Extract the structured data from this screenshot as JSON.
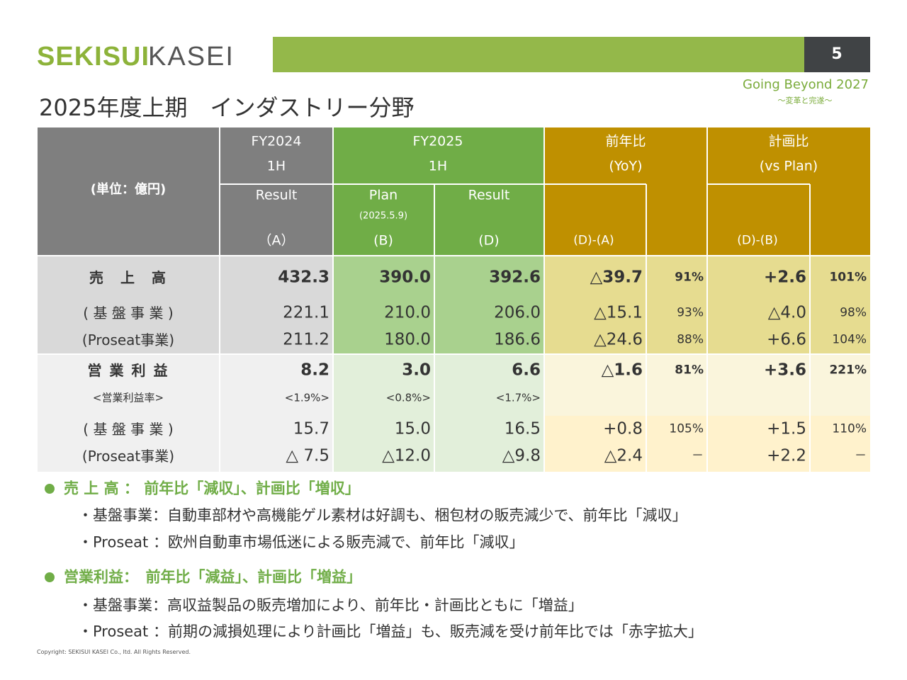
{
  "header": {
    "logo_bold": "SEKISUI",
    "logo_light": "KASEI",
    "page_number": "5",
    "tagline": "Going Beyond 2027",
    "tagline_sub": "～変革と完遂～"
  },
  "title": "2025年度上期　インダストリー分野",
  "table": {
    "unit": "(単位：億円)",
    "groups": [
      {
        "label": "FY2024",
        "sub": "1H"
      },
      {
        "label": "FY2025",
        "sub": "1H"
      },
      {
        "label": "前年比",
        "sub": "(YoY)"
      },
      {
        "label": "計画比",
        "sub": "(vs Plan)"
      }
    ],
    "subcolumns": [
      {
        "label": "Result",
        "code": "（A）"
      },
      {
        "label": "Plan",
        "note": "(2025.5.9)",
        "code": "(B)"
      },
      {
        "label": "Result",
        "code": "(D)"
      },
      {
        "code": "(D)-(A)"
      },
      {
        "code": "(D)-(B)"
      }
    ],
    "rows": [
      {
        "label": "売　上　高",
        "cells": [
          "432.3",
          "390.0",
          "392.6",
          "△39.7",
          "91%",
          "+2.6",
          "101%"
        ]
      },
      {
        "label": "( 基 盤 事 業 )",
        "cells": [
          "221.1",
          "210.0",
          "206.0",
          "△15.1",
          "93%",
          "△4.0",
          "98%"
        ]
      },
      {
        "label": "(Proseat事業)",
        "cells": [
          "211.2",
          "180.0",
          "186.6",
          "△24.6",
          "88%",
          "+6.6",
          "104%"
        ]
      },
      {
        "label": "営 業 利 益",
        "cells": [
          "8.2",
          "3.0",
          "6.6",
          "△1.6",
          "81%",
          "+3.6",
          "221%"
        ]
      },
      {
        "label": "<営業利益率>",
        "cells": [
          "<1.9%>",
          "<0.8%>",
          "<1.7%>"
        ]
      },
      {
        "label": "( 基 盤 事 業 )",
        "cells": [
          "15.7",
          "15.0",
          "16.5",
          "+0.8",
          "105%",
          "+1.5",
          "110%"
        ]
      },
      {
        "label": "(Proseat事業)",
        "cells": [
          "△ 7.5",
          "△12.0",
          "△9.8",
          "△2.4",
          "－",
          "+2.2",
          "－"
        ]
      }
    ]
  },
  "notes": [
    {
      "heading": "売 上 高 ： 前年比「減収」、計画比「増収」",
      "items": [
        "・基盤事業：自動車部材や高機能ゲル素材は好調も、梱包材の販売減少で、前年比「減収」",
        "・Proseat ：欧州自動車市場低迷による販売減で、前年比「減収」"
      ]
    },
    {
      "heading": "営業利益：　前年比「減益」、計画比「増益」",
      "items": [
        "・基盤事業：高収益製品の販売増加により、前年比・計画比ともに「増益」",
        "・Proseat ：前期の減損処理により計画比「増益」も、販売減を受け前年比では「赤字拡大」"
      ]
    }
  ],
  "copyright": "Copyright: SEKISUI KASEI Co., ltd. All Rights Reserved."
}
